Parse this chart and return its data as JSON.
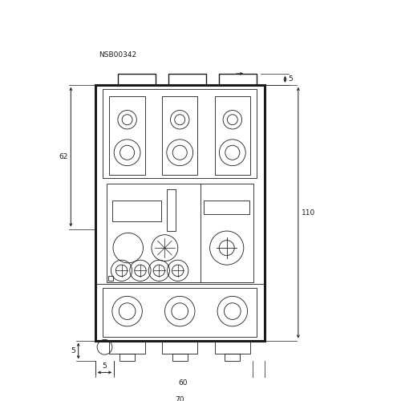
{
  "bg_color": "#ffffff",
  "lc": "#1a1a1a",
  "title_label": "NSB00342",
  "fig_width": 5.0,
  "fig_height": 5.0,
  "dpi": 100,
  "xlim": [
    0,
    100
  ],
  "ylim": [
    0,
    100
  ],
  "ox": 22,
  "oy": 10,
  "dw": 45,
  "dh": 68
}
